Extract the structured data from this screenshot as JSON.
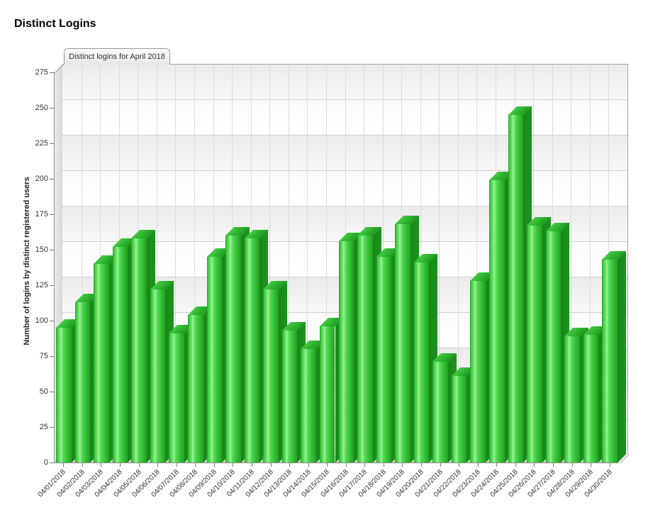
{
  "page": {
    "title": "Distinct Logins"
  },
  "tab": {
    "label": "Distinct logins for April 2018"
  },
  "y_axis": {
    "title": "Number of logins by distinct registered users"
  },
  "colors": {
    "bar_main": "#33cc33",
    "bar_highlight": "#9af29a",
    "bar_side_dark": "#1d941d",
    "grid_line": "#cfcfcf",
    "band_gray": "#ebebeb",
    "plot_border": "#a5a5a5",
    "text": "#333333"
  },
  "chart_data": {
    "type": "bar",
    "title": "Distinct logins for April 2018",
    "categories": [
      "04/01/2018",
      "04/02/2018",
      "04/03/2018",
      "04/04/2018",
      "04/05/2018",
      "04/06/2018",
      "04/07/2018",
      "04/08/2018",
      "04/09/2018",
      "04/10/2018",
      "04/11/2018",
      "04/12/2018",
      "04/13/2018",
      "04/14/2018",
      "04/15/2018",
      "04/16/2018",
      "04/17/2018",
      "04/18/2018",
      "04/19/2018",
      "04/20/2018",
      "04/21/2018",
      "04/22/2018",
      "04/23/2018",
      "04/24/2018",
      "04/25/2018",
      "04/26/2018",
      "04/27/2018",
      "04/28/2018",
      "04/29/2018",
      "04/30/2018"
    ],
    "values": [
      95,
      113,
      140,
      152,
      158,
      122,
      91,
      104,
      145,
      160,
      158,
      122,
      93,
      80,
      96,
      156,
      160,
      145,
      168,
      141,
      71,
      61,
      128,
      199,
      245,
      167,
      163,
      89,
      90,
      143
    ],
    "xlabel": "",
    "ylabel": "Number of logins by distinct registered users",
    "ylim": [
      0,
      275
    ],
    "ytick_step": 25,
    "y_ticks": [
      0,
      25,
      50,
      75,
      100,
      125,
      150,
      175,
      200,
      225,
      250,
      275
    ],
    "grid": true,
    "legend": false,
    "bands": "alternating-horizontal",
    "style": "3d-green-bars"
  }
}
